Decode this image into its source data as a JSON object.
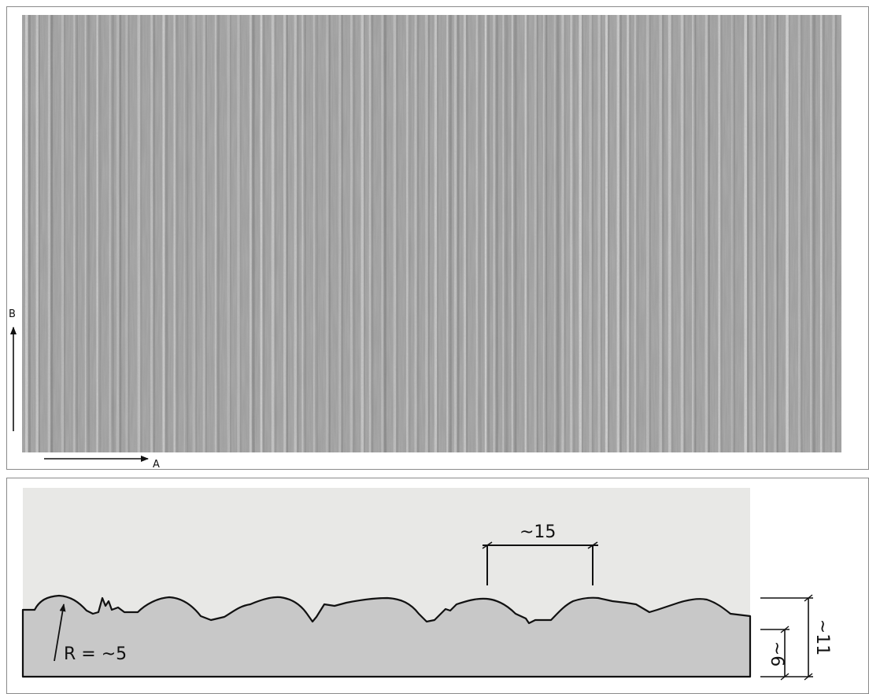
{
  "texture_photo": {
    "base_color": "#9b9b9b",
    "ridge_color": "#e4e4e4",
    "groove_color": "#6e6e6e"
  },
  "axes": {
    "a_label": "A",
    "b_label": "B"
  },
  "profile": {
    "background_color": "#e8e8e6",
    "material_color": "#c8c8c8",
    "outline_color": "#111111",
    "radius_label": "R = ~5",
    "pitch_label": "~15",
    "inner_height_label": "~6",
    "total_height_label": "~11"
  }
}
